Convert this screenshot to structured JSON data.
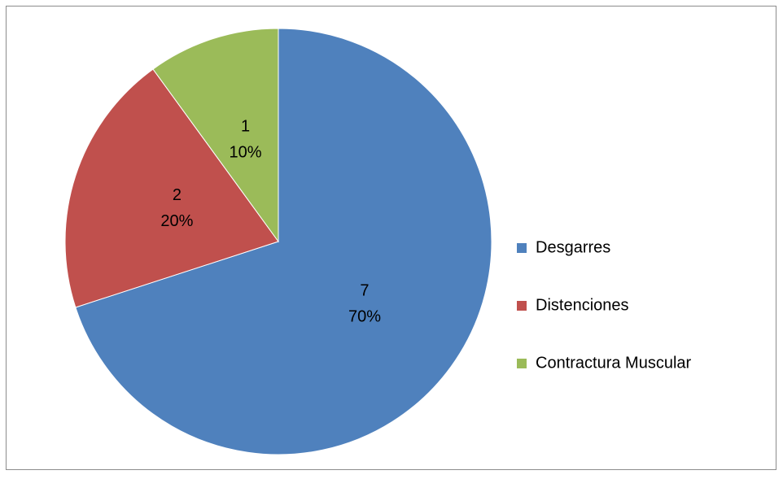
{
  "chart_data": {
    "type": "pie",
    "categories": [
      "Desgarres",
      "Distenciones",
      "Contractura Muscular"
    ],
    "values": [
      7,
      2,
      1
    ],
    "percentages": [
      70,
      20,
      10
    ],
    "percentage_labels": [
      "70%",
      "20%",
      "10%"
    ],
    "colors": [
      "#4f81bd",
      "#c0504d",
      "#9bbb59"
    ],
    "legend": "right"
  }
}
